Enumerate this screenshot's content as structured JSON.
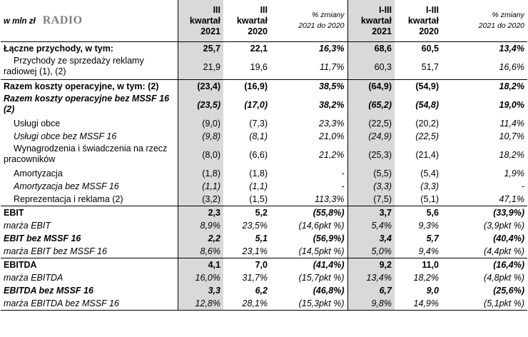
{
  "header": {
    "unit": "w mln zł",
    "segment": "RADIO",
    "columns": [
      "III\nkwartał\n2021",
      "III\nkwartał\n2020",
      "% zmiany\n2021 do 2020",
      "I-III\nkwartał\n2021",
      "I-III\nkwartał\n2020",
      "% zmiany\n2021 do 2020"
    ]
  },
  "rows": [
    {
      "label": "Łączne przychody, w tym:",
      "v": [
        "25,7",
        "22,1",
        "16,3%",
        "68,6",
        "60,5",
        "13,4%"
      ]
    },
    {
      "label": "Przychody ze sprzedaży reklamy radiowej (1), (2)",
      "v": [
        "21,9",
        "19,6",
        "11,7%",
        "60,3",
        "51,7",
        "16,6%"
      ]
    },
    {
      "label": "Razem koszty operacyjne, w tym: (2)",
      "v": [
        "(23,4)",
        "(16,9)",
        "38,5%",
        "(64,9)",
        "(54,9)",
        "18,2%"
      ]
    },
    {
      "label": "Razem koszty operacyjne bez MSSF 16 (2)",
      "v": [
        "(23,5)",
        "(17,0)",
        "38,2%",
        "(65,2)",
        "(54,8)",
        "19,0%"
      ]
    },
    {
      "label": "Usługi obce",
      "v": [
        "(9,0)",
        "(7,3)",
        "23,3%",
        "(22,5)",
        "(20,2)",
        "11,4%"
      ]
    },
    {
      "label": "Usługi obce bez MSSF 16",
      "v": [
        "(9,8)",
        "(8,1)",
        "21,0%",
        "(24,9)",
        "(22,5)",
        "10,7%"
      ]
    },
    {
      "label": "Wynagrodzenia i świadczenia na rzecz pracowników",
      "v": [
        "(8,0)",
        "(6,6)",
        "21,2%",
        "(25,3)",
        "(21,4)",
        "18,2%"
      ]
    },
    {
      "label": "Amortyzacja",
      "v": [
        "(1,8)",
        "(1,8)",
        "-",
        "(5,5)",
        "(5,4)",
        "1,9%"
      ]
    },
    {
      "label": "Amortyzacja bez MSSF 16",
      "v": [
        "(1,1)",
        "(1,1)",
        "-",
        "(3,3)",
        "(3,3)",
        "-"
      ]
    },
    {
      "label": "Reprezentacja i reklama (2)",
      "v": [
        "(3,2)",
        "(1,5)",
        "113,3%",
        "(7,5)",
        "(5,1)",
        "47,1%"
      ]
    },
    {
      "label": "EBIT",
      "v": [
        "2,3",
        "5,2",
        "(55,8%)",
        "3,7",
        "5,6",
        "(33,9%)"
      ]
    },
    {
      "label": "marża EBIT",
      "v": [
        "8,9%",
        "23,5%",
        "(14,6pkt %)",
        "5,4%",
        "9,3%",
        "(3,9pkt %)"
      ]
    },
    {
      "label": "EBIT bez MSSF 16",
      "v": [
        "2,2",
        "5,1",
        "(56,9%)",
        "3,4",
        "5,7",
        "(40,4%)"
      ]
    },
    {
      "label": "marża EBIT bez MSSF 16",
      "v": [
        "8,6%",
        "23,1%",
        "(14,5pkt %)",
        "5,0%",
        "9,4%",
        "(4,4pkt %)"
      ]
    },
    {
      "label": "EBITDA",
      "v": [
        "4,1",
        "7,0",
        "(41,4%)",
        "9,2",
        "11,0",
        "(16,4%)"
      ]
    },
    {
      "label": "marża EBITDA",
      "v": [
        "16,0%",
        "31,7%",
        "(15,7pkt %)",
        "13,4%",
        "18,2%",
        "(4,8pkt %)"
      ]
    },
    {
      "label": "EBITDA bez MSSF 16",
      "v": [
        "3,3",
        "6,2",
        "(46,8%)",
        "6,7",
        "9,0",
        "(25,6%)"
      ]
    },
    {
      "label": "marża EBITDA bez MSSF 16",
      "v": [
        "12,8%",
        "28,1%",
        "(15,3pkt %)",
        "9,8%",
        "14,9%",
        "(5,1pkt %)"
      ]
    }
  ]
}
